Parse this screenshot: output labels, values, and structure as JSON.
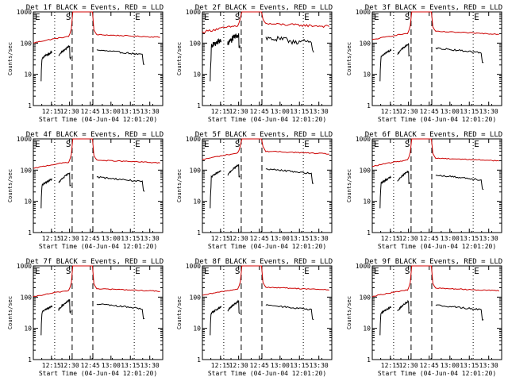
{
  "chart_data": [
    {
      "type": "line",
      "title": "Det 1f BLACK = Events, RED = LLD",
      "ylabel": "Counts/sec",
      "xlabel": "Start Time (04-Jun-04 12:01:20)",
      "yscale": "log",
      "ylim": [
        1,
        1000
      ],
      "yticks": [
        "1",
        "10",
        "100",
        "1000"
      ],
      "xticks": [
        "12:15",
        "12:30",
        "12:45",
        "13:00",
        "13:15",
        "13:30"
      ],
      "markers": {
        "E1": "E",
        "S": "S",
        "E2": "E"
      },
      "series": [
        {
          "name": "Events",
          "color": "#000000",
          "base": 52
        },
        {
          "name": "LLD",
          "color": "#cc0000",
          "base": 135
        }
      ]
    },
    {
      "type": "line",
      "title": "Det 2f BLACK = Events, RED = LLD",
      "ylabel": "Counts/sec",
      "xlabel": "Start Time (04-Jun-04 12:01:20)",
      "yscale": "log",
      "ylim": [
        1,
        1000
      ],
      "yticks": [
        "1",
        "10",
        "100",
        "1000"
      ],
      "xticks": [
        "12:15",
        "12:30",
        "12:45",
        "13:00",
        "13:15",
        "13:30"
      ],
      "markers": {
        "E1": "E",
        "S": "S",
        "E2": "E"
      },
      "series": [
        {
          "name": "Events",
          "color": "#000000",
          "base": 125
        },
        {
          "name": "LLD",
          "color": "#cc0000",
          "base": 300
        }
      ]
    },
    {
      "type": "line",
      "title": "Det 3f BLACK = Events, RED = LLD",
      "ylabel": "Counts/sec",
      "xlabel": "Start Time (04-Jun-04 12:01:20)",
      "yscale": "log",
      "ylim": [
        1,
        1000
      ],
      "yticks": [
        "1",
        "10",
        "100",
        "1000"
      ],
      "xticks": [
        "12:15",
        "12:30",
        "12:45",
        "13:00",
        "13:15",
        "13:30"
      ],
      "markers": {
        "E1": "E",
        "S": "S",
        "E2": "E"
      },
      "series": [
        {
          "name": "Events",
          "color": "#000000",
          "base": 60
        },
        {
          "name": "LLD",
          "color": "#cc0000",
          "base": 170
        }
      ]
    },
    {
      "type": "line",
      "title": "Det 4f BLACK = Events, RED = LLD",
      "ylabel": "Counts/sec",
      "xlabel": "Start Time (04-Jun-04 12:01:20)",
      "yscale": "log",
      "ylim": [
        1,
        1000
      ],
      "yticks": [
        "1",
        "10",
        "100",
        "1000"
      ],
      "xticks": [
        "12:15",
        "12:30",
        "12:45",
        "13:00",
        "13:15",
        "13:30"
      ],
      "markers": {
        "E1": "E",
        "S": "S",
        "E2": "E"
      },
      "series": [
        {
          "name": "Events",
          "color": "#000000",
          "base": 52
        },
        {
          "name": "LLD",
          "color": "#cc0000",
          "base": 150
        }
      ]
    },
    {
      "type": "line",
      "title": "Det 5f BLACK = Events, RED = LLD",
      "ylabel": "Counts/sec",
      "xlabel": "Start Time (04-Jun-04 12:01:20)",
      "yscale": "log",
      "ylim": [
        1,
        1000
      ],
      "yticks": [
        "1",
        "10",
        "100",
        "1000"
      ],
      "xticks": [
        "12:15",
        "12:30",
        "12:45",
        "13:00",
        "13:15",
        "13:30"
      ],
      "markers": {
        "E1": "E",
        "S": "S",
        "E2": "E"
      },
      "series": [
        {
          "name": "Events",
          "color": "#000000",
          "base": 95
        },
        {
          "name": "LLD",
          "color": "#cc0000",
          "base": 290
        }
      ]
    },
    {
      "type": "line",
      "title": "Det 6f BLACK = Events, RED = LLD",
      "ylabel": "Counts/sec",
      "xlabel": "Start Time (04-Jun-04 12:01:20)",
      "yscale": "log",
      "ylim": [
        1,
        1000
      ],
      "yticks": [
        "1",
        "10",
        "100",
        "1000"
      ],
      "xticks": [
        "12:15",
        "12:30",
        "12:45",
        "13:00",
        "13:15",
        "13:30"
      ],
      "markers": {
        "E1": "E",
        "S": "S",
        "E2": "E"
      },
      "series": [
        {
          "name": "Events",
          "color": "#000000",
          "base": 60
        },
        {
          "name": "LLD",
          "color": "#cc0000",
          "base": 175
        }
      ]
    },
    {
      "type": "line",
      "title": "Det 7f BLACK = Events, RED = LLD",
      "ylabel": "Counts/sec",
      "xlabel": "Start Time (04-Jun-04 12:01:20)",
      "yscale": "log",
      "ylim": [
        1,
        1000
      ],
      "yticks": [
        "1",
        "10",
        "100",
        "1000"
      ],
      "xticks": [
        "12:15",
        "12:30",
        "12:45",
        "13:00",
        "13:15",
        "13:30"
      ],
      "markers": {
        "E1": "E",
        "S": "S",
        "E2": "E"
      },
      "series": [
        {
          "name": "Events",
          "color": "#000000",
          "base": 52
        },
        {
          "name": "LLD",
          "color": "#cc0000",
          "base": 135
        }
      ]
    },
    {
      "type": "line",
      "title": "Det 8f BLACK = Events, RED = LLD",
      "ylabel": "Counts/sec",
      "xlabel": "Start Time (04-Jun-04 12:01:20)",
      "yscale": "log",
      "ylim": [
        1,
        1000
      ],
      "yticks": [
        "1",
        "10",
        "100",
        "1000"
      ],
      "xticks": [
        "12:15",
        "12:30",
        "12:45",
        "13:00",
        "13:15",
        "13:30"
      ],
      "markers": {
        "E1": "E",
        "S": "S",
        "E2": "E"
      },
      "series": [
        {
          "name": "Events",
          "color": "#000000",
          "base": 48
        },
        {
          "name": "LLD",
          "color": "#cc0000",
          "base": 150
        }
      ]
    },
    {
      "type": "line",
      "title": "Det 9f BLACK = Events, RED = LLD",
      "ylabel": "Counts/sec",
      "xlabel": "Start Time (04-Jun-04 12:01:20)",
      "yscale": "log",
      "ylim": [
        1,
        1000
      ],
      "yticks": [
        "1",
        "10",
        "100",
        "1000"
      ],
      "xticks": [
        "12:15",
        "12:30",
        "12:45",
        "13:00",
        "13:15",
        "13:30"
      ],
      "markers": {
        "E1": "E",
        "S": "S",
        "E2": "E"
      },
      "series": [
        {
          "name": "Events",
          "color": "#000000",
          "base": 48
        },
        {
          "name": "LLD",
          "color": "#cc0000",
          "base": 140
        }
      ]
    }
  ]
}
